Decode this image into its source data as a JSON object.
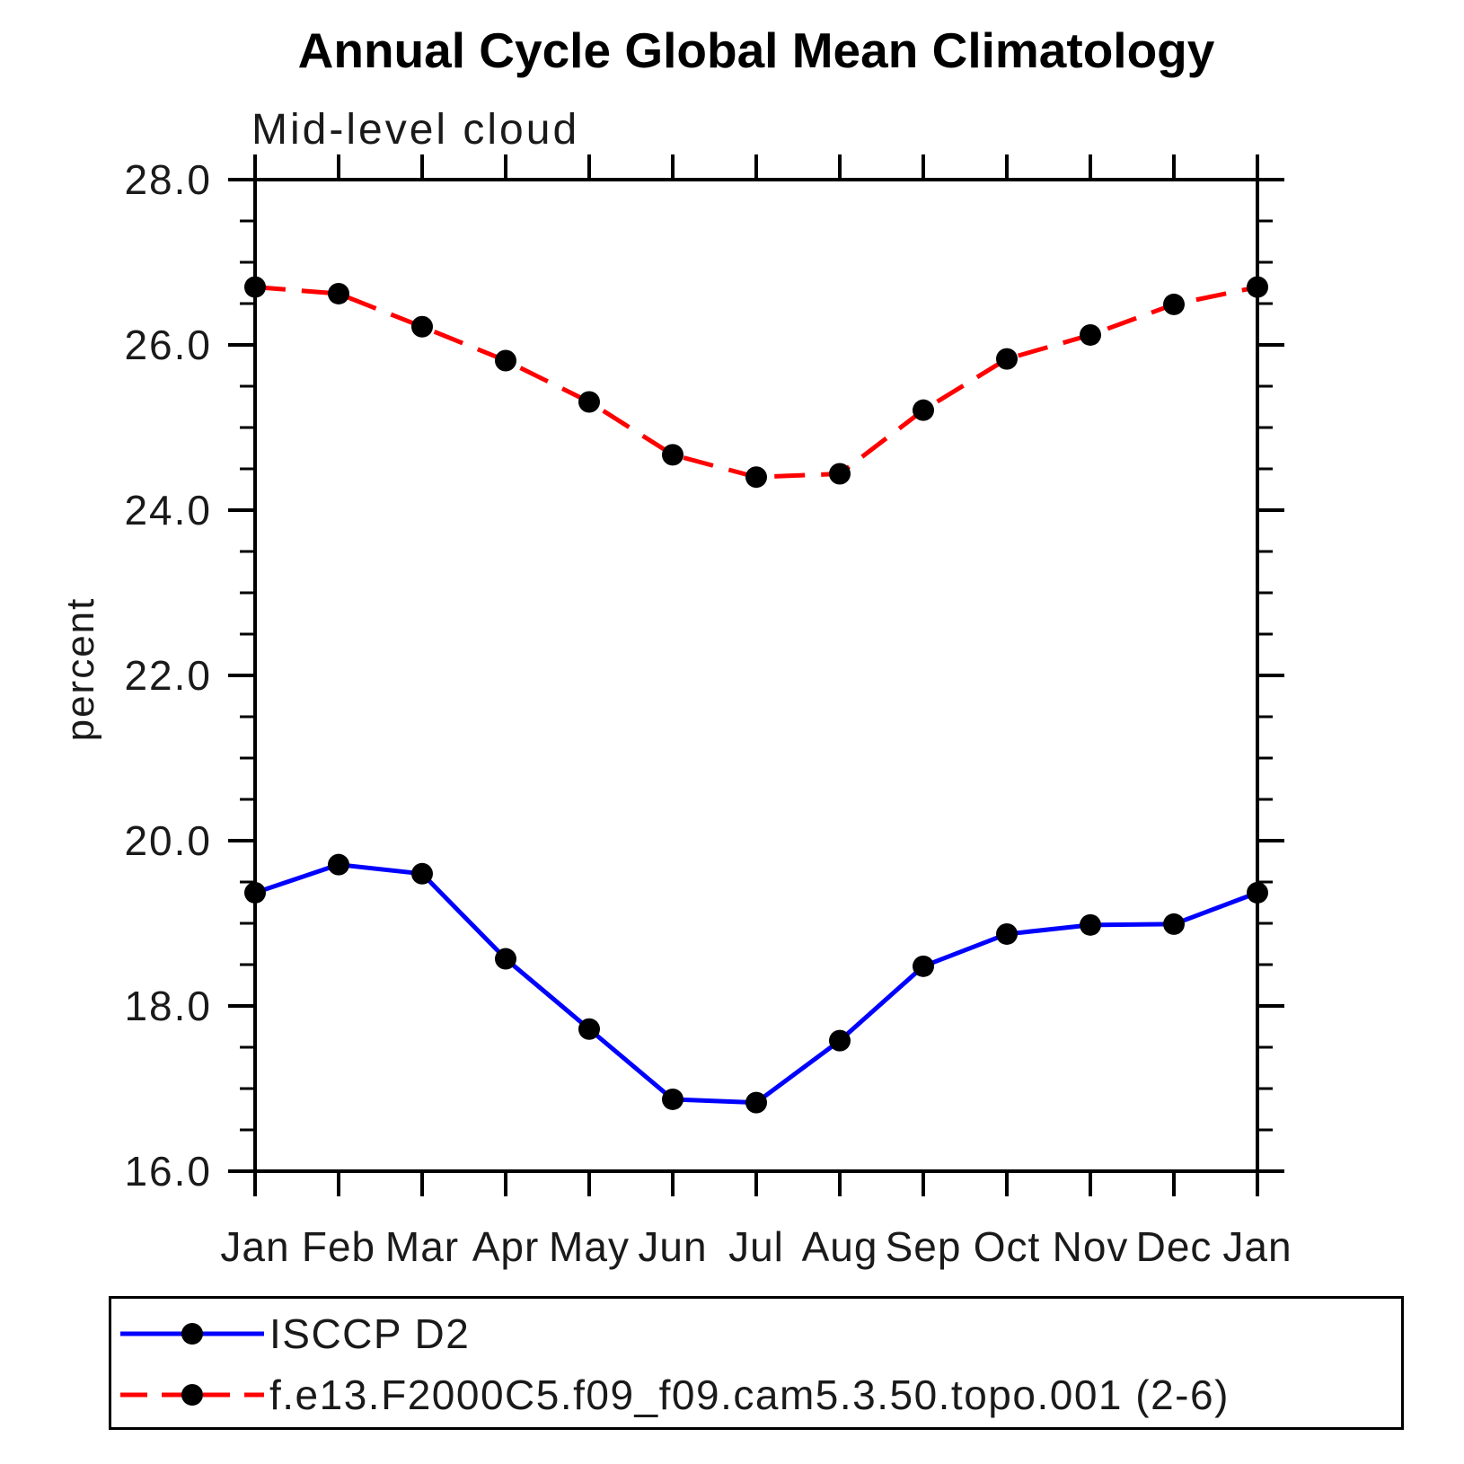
{
  "chart_data": {
    "type": "line",
    "title": "Annual Cycle Global Mean Climatology",
    "subtitle": "Mid-level cloud",
    "ylabel": "percent",
    "categories": [
      "Jan",
      "Feb",
      "Mar",
      "Apr",
      "May",
      "Jun",
      "Jul",
      "Aug",
      "Sep",
      "Oct",
      "Nov",
      "Dec",
      "Jan"
    ],
    "series": [
      {
        "name": "ISCCP D2",
        "color": "#0000ff",
        "style": "solid",
        "marker": "filled-circle",
        "marker_color": "#000000",
        "values": [
          19.37,
          19.71,
          19.6,
          18.57,
          17.72,
          16.87,
          16.83,
          17.58,
          18.48,
          18.87,
          18.98,
          18.99,
          19.37
        ]
      },
      {
        "name": "f.e13.F2000C5.f09_f09.cam5.3.50.topo.001 (2-6)",
        "color": "#ff0000",
        "style": "dashed",
        "marker": "filled-circle",
        "marker_color": "#000000",
        "values": [
          26.7,
          26.62,
          26.22,
          25.81,
          25.31,
          24.67,
          24.4,
          24.44,
          25.21,
          25.83,
          26.12,
          26.49,
          26.7
        ]
      }
    ],
    "ylim": [
      16.0,
      28.0
    ],
    "y_major_ticks": [
      16,
      18,
      20,
      22,
      24,
      26,
      28
    ],
    "y_tick_labels": [
      "16.0",
      "18.0",
      "20.0",
      "22.0",
      "24.0",
      "26.0",
      "28.0"
    ],
    "y_minor_step": 0.5,
    "grid": "off",
    "legend_position": "bottom-left"
  }
}
